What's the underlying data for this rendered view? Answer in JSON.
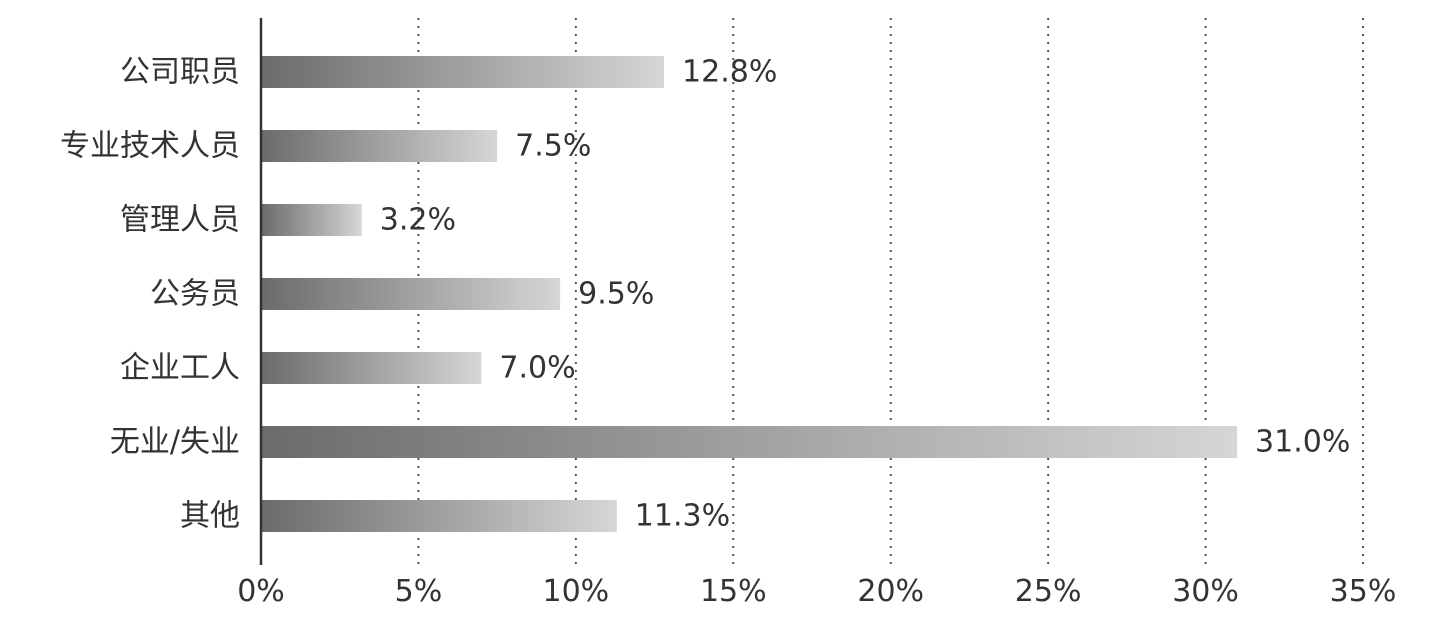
{
  "chart_data": {
    "type": "bar",
    "orientation": "horizontal",
    "categories": [
      "公司职员",
      "专业技术人员",
      "管理人员",
      "公务员",
      "企业工人",
      "无业/失业",
      "其他"
    ],
    "values": [
      12.8,
      7.5,
      3.2,
      9.5,
      7.0,
      31.0,
      11.3
    ],
    "value_labels": [
      "12.8%",
      "7.5%",
      "3.2%",
      "9.5%",
      "7.0%",
      "31.0%",
      "11.3%"
    ],
    "x_ticks": [
      "0%",
      "5%",
      "10%",
      "15%",
      "20%",
      "25%",
      "30%",
      "35%"
    ],
    "x_tick_values": [
      0,
      5,
      10,
      15,
      20,
      25,
      30,
      35
    ],
    "xlim": [
      0,
      35
    ],
    "title": "",
    "xlabel": "",
    "ylabel": "",
    "grid": "vertical-dotted",
    "legend": "none",
    "colors": {
      "bar_gradient_start": "#6b6b6b",
      "bar_gradient_end": "#d6d6d4",
      "axis": "#333333",
      "grid": "#555555",
      "text": "#333333"
    }
  }
}
